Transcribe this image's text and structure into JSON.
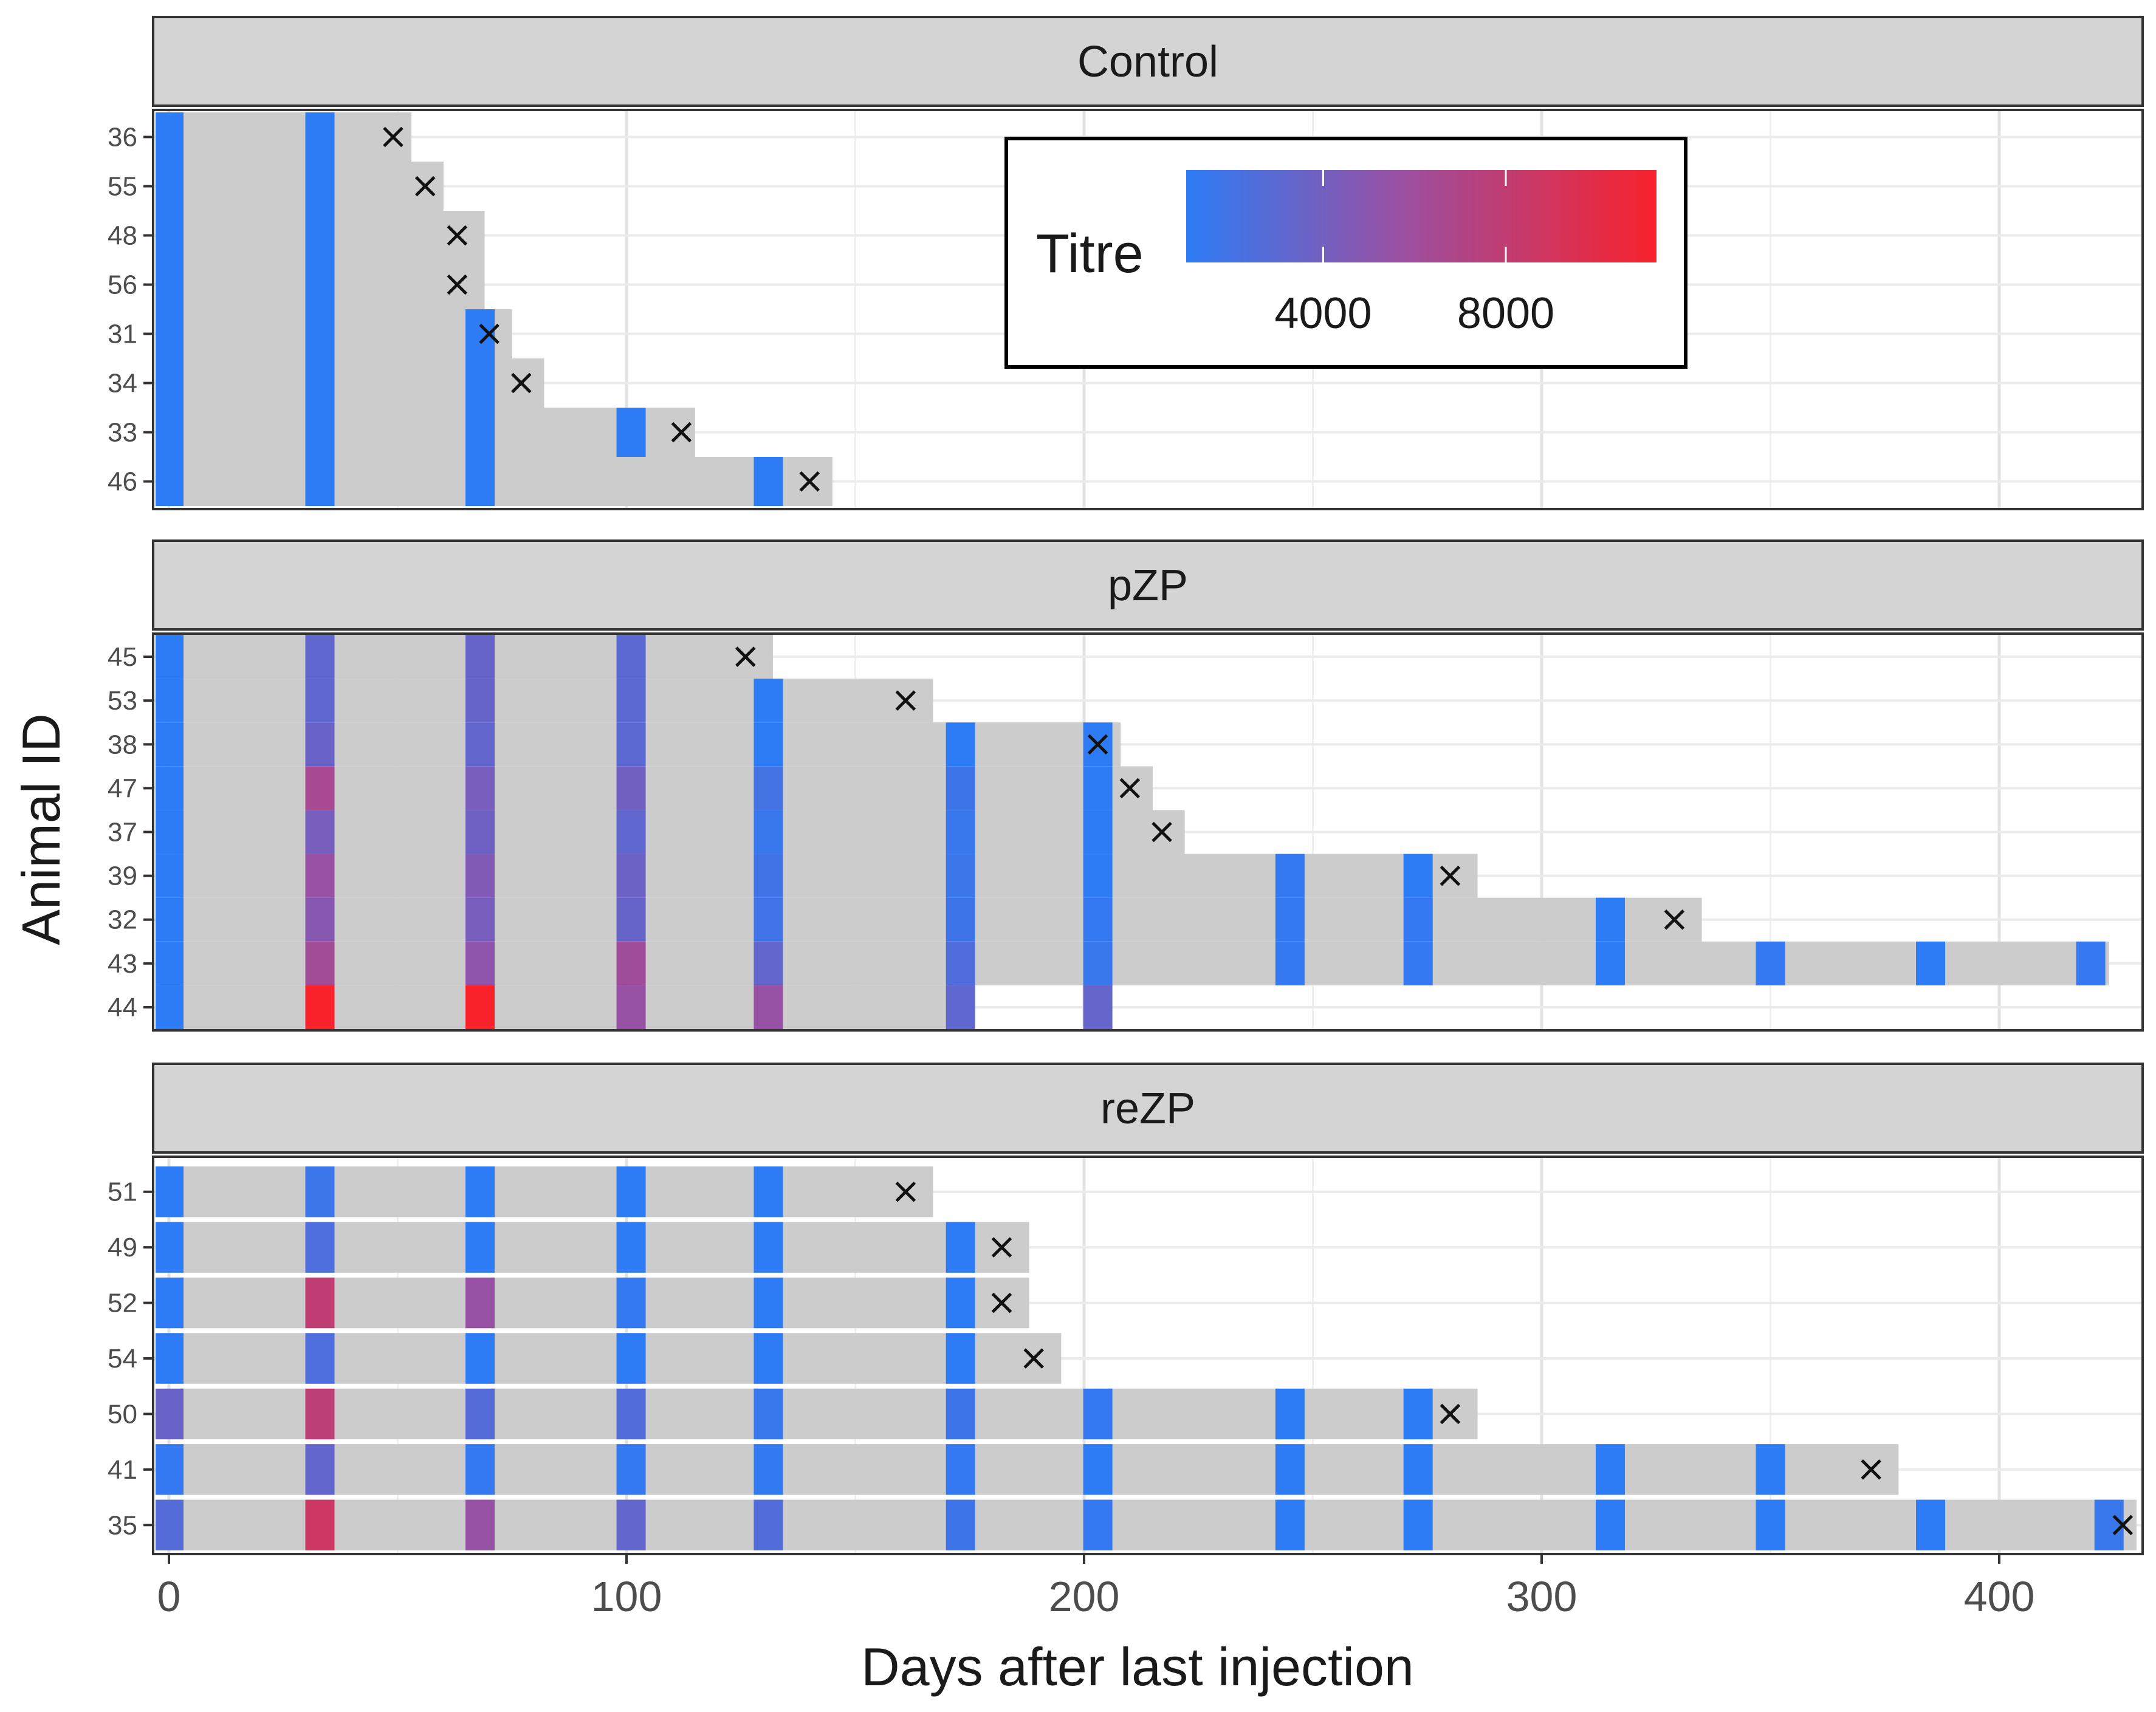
{
  "chart_data": {
    "type": "faceted-timeline-heatmap",
    "xlabel": "Days after last injection",
    "ylabel": "Animal ID",
    "xlim": [
      -3,
      431
    ],
    "x_ticks": [
      0,
      100,
      200,
      300,
      400
    ],
    "tick_labels": [
      "0",
      "100",
      "200",
      "300",
      "400"
    ],
    "legend": {
      "title": "Titre",
      "min": 1000,
      "max": 11300,
      "ticks": [
        4000,
        8000
      ],
      "tick_labels": [
        "4000",
        "8000"
      ],
      "low_color": "#2d7cf6",
      "mid_color": "#9950a3",
      "high_color": "#f8212c",
      "placement": "top-right inside Control panel"
    },
    "gray_color": "#cccccc",
    "panels": [
      {
        "name": "Control",
        "animals": [
          {
            "id": "36",
            "end": 53,
            "death": 49,
            "samples": [
              [
                0,
                1000
              ],
              [
                33,
                1000
              ]
            ]
          },
          {
            "id": "55",
            "end": 60,
            "death": 56,
            "samples": [
              [
                0,
                1000
              ],
              [
                33,
                1000
              ]
            ]
          },
          {
            "id": "48",
            "end": 69,
            "death": 63,
            "samples": [
              [
                0,
                1000
              ],
              [
                33,
                1000
              ]
            ]
          },
          {
            "id": "56",
            "end": 69,
            "death": 63,
            "samples": [
              [
                0,
                1000
              ],
              [
                33,
                1000
              ]
            ]
          },
          {
            "id": "31",
            "end": 75,
            "death": 70,
            "samples": [
              [
                0,
                1000
              ],
              [
                33,
                1000
              ],
              [
                68,
                1000
              ]
            ]
          },
          {
            "id": "34",
            "end": 82,
            "death": 77,
            "samples": [
              [
                0,
                1000
              ],
              [
                33,
                1000
              ],
              [
                68,
                1000
              ]
            ]
          },
          {
            "id": "33",
            "end": 115,
            "death": 112,
            "samples": [
              [
                0,
                1000
              ],
              [
                33,
                1000
              ],
              [
                68,
                1000
              ],
              [
                101,
                1000
              ]
            ]
          },
          {
            "id": "46",
            "end": 145,
            "death": 140,
            "samples": [
              [
                0,
                1000
              ],
              [
                33,
                1000
              ],
              [
                68,
                1000
              ],
              [
                131,
                1000
              ]
            ]
          }
        ]
      },
      {
        "name": "pZP",
        "animals": [
          {
            "id": "45",
            "end": 132,
            "death": 126,
            "samples": [
              [
                0,
                1000
              ],
              [
                33,
                3200
              ],
              [
                68,
                3500
              ],
              [
                101,
                3000
              ]
            ]
          },
          {
            "id": "53",
            "end": 167,
            "death": 161,
            "samples": [
              [
                0,
                1000
              ],
              [
                33,
                3200
              ],
              [
                68,
                3500
              ],
              [
                101,
                3000
              ],
              [
                131,
                1000
              ]
            ]
          },
          {
            "id": "38",
            "end": 208,
            "death": 203,
            "samples": [
              [
                0,
                1000
              ],
              [
                33,
                3600
              ],
              [
                68,
                3300
              ],
              [
                101,
                3000
              ],
              [
                131,
                1000
              ],
              [
                173,
                1000
              ],
              [
                203,
                1000
              ]
            ]
          },
          {
            "id": "47",
            "end": 215,
            "death": 210,
            "samples": [
              [
                0,
                1000
              ],
              [
                33,
                6500
              ],
              [
                68,
                4200
              ],
              [
                101,
                3900
              ],
              [
                131,
                2000
              ],
              [
                173,
                1700
              ],
              [
                203,
                1000
              ]
            ]
          },
          {
            "id": "37",
            "end": 222,
            "death": 217,
            "samples": [
              [
                0,
                1000
              ],
              [
                33,
                4200
              ],
              [
                68,
                3800
              ],
              [
                101,
                3200
              ],
              [
                131,
                1500
              ],
              [
                173,
                1500
              ],
              [
                203,
                1000
              ]
            ]
          },
          {
            "id": "39",
            "end": 286,
            "death": 280,
            "samples": [
              [
                0,
                1000
              ],
              [
                33,
                5600
              ],
              [
                68,
                4600
              ],
              [
                101,
                3700
              ],
              [
                131,
                1900
              ],
              [
                173,
                1600
              ],
              [
                203,
                1000
              ],
              [
                245,
                1300
              ],
              [
                273,
                1000
              ]
            ]
          },
          {
            "id": "32",
            "end": 335,
            "death": 329,
            "samples": [
              [
                0,
                1000
              ],
              [
                33,
                4800
              ],
              [
                68,
                4200
              ],
              [
                101,
                3500
              ],
              [
                131,
                1800
              ],
              [
                173,
                1700
              ],
              [
                203,
                1300
              ],
              [
                245,
                1300
              ],
              [
                273,
                1300
              ],
              [
                315,
                1000
              ]
            ]
          },
          {
            "id": "43",
            "end": 424,
            "death": null,
            "samples": [
              [
                0,
                1000
              ],
              [
                33,
                6200
              ],
              [
                68,
                5200
              ],
              [
                101,
                6000
              ],
              [
                131,
                3300
              ],
              [
                173,
                2500
              ],
              [
                203,
                1500
              ],
              [
                245,
                1300
              ],
              [
                273,
                1300
              ],
              [
                315,
                1000
              ],
              [
                350,
                1300
              ],
              [
                385,
                1000
              ],
              [
                420,
                1400
              ]
            ]
          },
          {
            "id": "44",
            "end": 172,
            "death": null,
            "samples": [
              [
                0,
                1000
              ],
              [
                33,
                11300
              ],
              [
                68,
                11300
              ],
              [
                101,
                5500
              ],
              [
                131,
                5500
              ],
              [
                173,
                3200
              ],
              [
                203,
                3400
              ]
            ]
          }
        ]
      },
      {
        "name": "reZP",
        "animals": [
          {
            "id": "51",
            "end": 167,
            "death": 161,
            "samples": [
              [
                0,
                1000
              ],
              [
                33,
                1600
              ],
              [
                68,
                1000
              ],
              [
                101,
                1000
              ],
              [
                131,
                1000
              ]
            ]
          },
          {
            "id": "49",
            "end": 188,
            "death": 182,
            "samples": [
              [
                0,
                1000
              ],
              [
                33,
                2400
              ],
              [
                68,
                1000
              ],
              [
                101,
                1000
              ],
              [
                131,
                1000
              ],
              [
                173,
                1000
              ]
            ]
          },
          {
            "id": "52",
            "end": 188,
            "death": 182,
            "samples": [
              [
                0,
                1000
              ],
              [
                33,
                7900
              ],
              [
                68,
                5500
              ],
              [
                101,
                1300
              ],
              [
                131,
                1000
              ],
              [
                173,
                1000
              ]
            ]
          },
          {
            "id": "54",
            "end": 195,
            "death": 189,
            "samples": [
              [
                0,
                1000
              ],
              [
                33,
                2400
              ],
              [
                68,
                1000
              ],
              [
                101,
                1000
              ],
              [
                131,
                1000
              ],
              [
                173,
                1000
              ]
            ]
          },
          {
            "id": "50",
            "end": 286,
            "death": 280,
            "samples": [
              [
                0,
                3600
              ],
              [
                33,
                7700
              ],
              [
                68,
                2700
              ],
              [
                101,
                2600
              ],
              [
                131,
                1500
              ],
              [
                173,
                1700
              ],
              [
                203,
                1300
              ],
              [
                245,
                1000
              ],
              [
                273,
                1000
              ]
            ]
          },
          {
            "id": "41",
            "end": 378,
            "death": 372,
            "samples": [
              [
                0,
                1300
              ],
              [
                33,
                3300
              ],
              [
                68,
                1300
              ],
              [
                101,
                1300
              ],
              [
                131,
                1200
              ],
              [
                173,
                1300
              ],
              [
                203,
                1000
              ],
              [
                245,
                1000
              ],
              [
                273,
                1000
              ],
              [
                315,
                1000
              ],
              [
                350,
                1000
              ]
            ]
          },
          {
            "id": "35",
            "end": 430,
            "death": 427,
            "samples": [
              [
                0,
                2700
              ],
              [
                33,
                8700
              ],
              [
                68,
                5500
              ],
              [
                101,
                3300
              ],
              [
                131,
                2600
              ],
              [
                173,
                1700
              ],
              [
                203,
                1300
              ],
              [
                245,
                1000
              ],
              [
                273,
                1000
              ],
              [
                315,
                1000
              ],
              [
                350,
                1000
              ],
              [
                385,
                1000
              ],
              [
                424,
                1500
              ]
            ]
          }
        ]
      }
    ]
  }
}
